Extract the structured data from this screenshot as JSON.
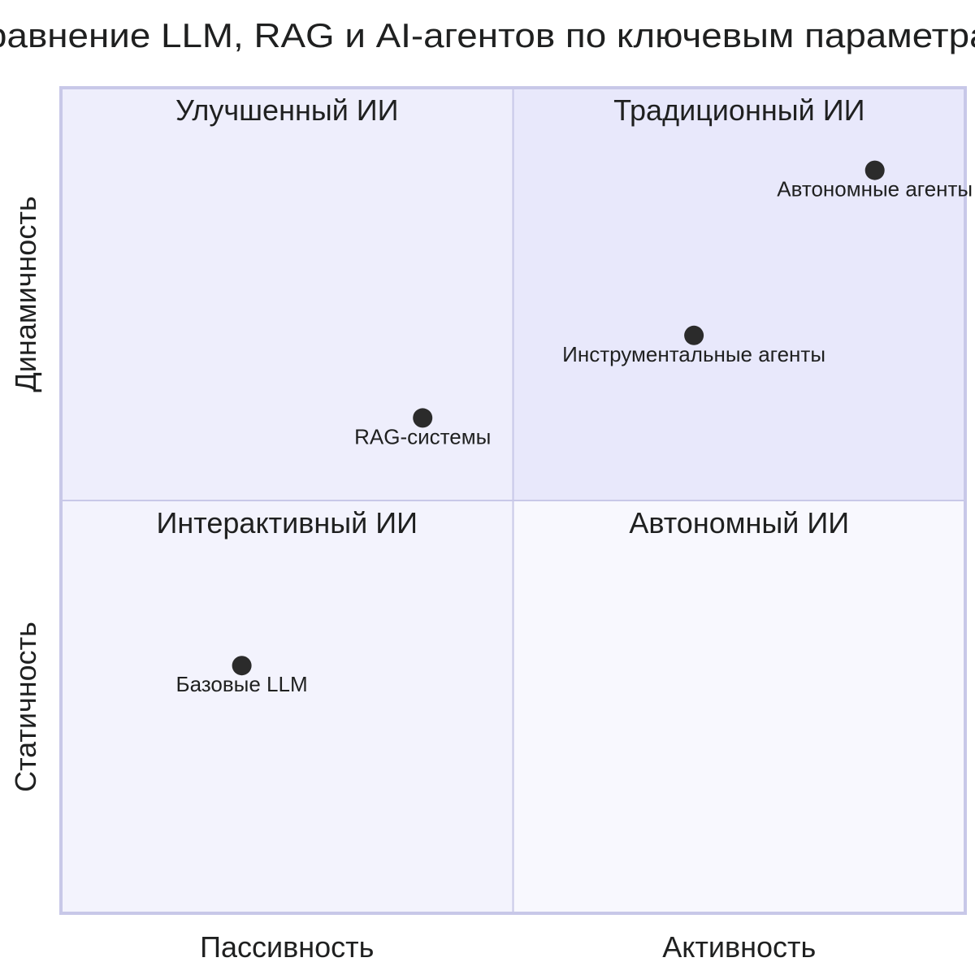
{
  "chart_data": {
    "type": "scatter",
    "title": "Сравнение LLM, RAG и AI-агентов по ключевым параметрам",
    "x_axis": {
      "low_label": "Пассивность",
      "high_label": "Активность",
      "range": [
        0,
        1
      ]
    },
    "y_axis": {
      "low_label": "Статичность",
      "high_label": "Динамичность",
      "range": [
        0,
        1
      ]
    },
    "quadrants": [
      {
        "position": "top-right",
        "label": "Традиционный ИИ",
        "fill": "#e8e8fb"
      },
      {
        "position": "top-left",
        "label": "Улучшенный ИИ",
        "fill": "#eeeefc"
      },
      {
        "position": "bottom-left",
        "label": "Интерактивный ИИ",
        "fill": "#f3f3fd"
      },
      {
        "position": "bottom-right",
        "label": "Автономный ИИ",
        "fill": "#f8f8fe"
      }
    ],
    "points": [
      {
        "label": "Базовые LLM",
        "x": 0.2,
        "y": 0.3
      },
      {
        "label": "RAG-системы",
        "x": 0.4,
        "y": 0.6
      },
      {
        "label": "Инструментальные агенты",
        "x": 0.7,
        "y": 0.7
      },
      {
        "label": "Автономные агенты",
        "x": 0.9,
        "y": 0.9
      }
    ],
    "grid": false,
    "colors": {
      "border": "#c8c8e8",
      "point": "#2b2b2b",
      "text": "#1f2020"
    }
  }
}
